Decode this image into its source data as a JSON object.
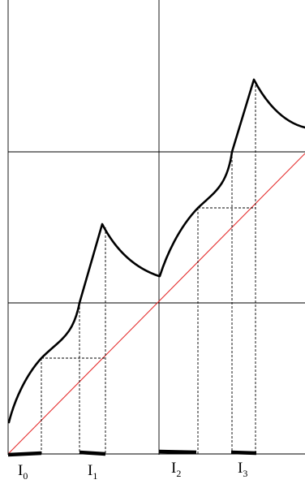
{
  "diagram": {
    "interval_labels": [
      {
        "base": "I",
        "subscript": "0"
      },
      {
        "base": "I",
        "subscript": "1"
      },
      {
        "base": "I",
        "subscript": "2"
      },
      {
        "base": "I",
        "subscript": "3"
      }
    ],
    "colors": {
      "curve": "#000000",
      "diagonal": "#e53030",
      "grid": "#000000",
      "construction": "#000000",
      "interval_bar": "#000000"
    }
  }
}
